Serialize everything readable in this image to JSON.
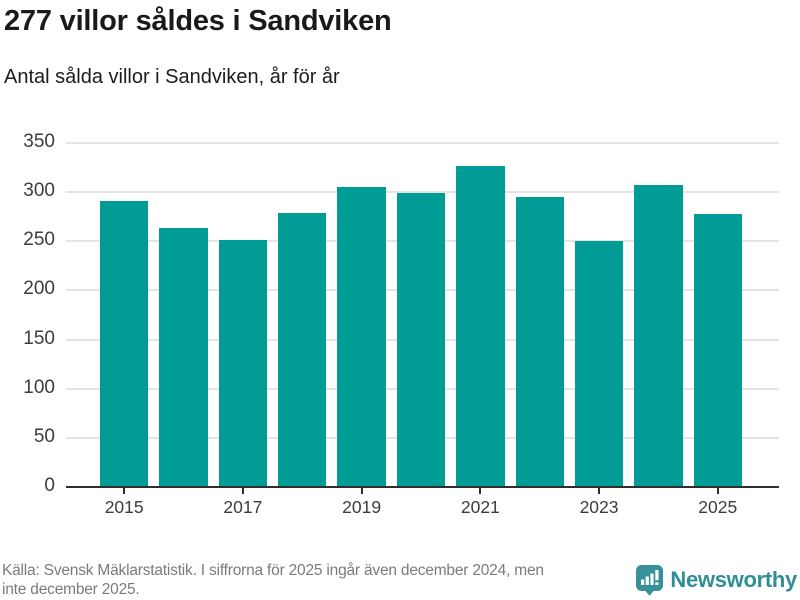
{
  "header": {
    "title": "277 villor såldes i Sandviken",
    "subtitle": "Antal sålda villor i Sandviken, år för år"
  },
  "chart_data": {
    "type": "bar",
    "title": "277 villor såldes i Sandviken",
    "subtitle": "Antal sålda villor i Sandviken, år för år",
    "categories": [
      "2015",
      "2016",
      "2017",
      "2018",
      "2019",
      "2020",
      "2021",
      "2022",
      "2023",
      "2024",
      "2025"
    ],
    "values": [
      290,
      262,
      250,
      278,
      304,
      298,
      326,
      294,
      249,
      306,
      277
    ],
    "xlabel": "",
    "ylabel": "",
    "ylim": [
      0,
      350
    ],
    "y_ticks": [
      0,
      50,
      100,
      150,
      200,
      250,
      300,
      350
    ],
    "x_tick_labels": [
      "2015",
      "2017",
      "2019",
      "2021",
      "2023",
      "2025"
    ],
    "grid": true,
    "legend": false,
    "bar_color": "#009c95",
    "gridline_color": "#e4e4e4",
    "axis_color": "#2e2e2e"
  },
  "footer": {
    "source_lines": [
      "Källa: Svensk Mäklarstatistik. I siffrorna för 2025 ingår även december 2024, men",
      "inte december 2025."
    ],
    "brand": {
      "name": "Newsworthy",
      "logo_color": "#38919a",
      "wordmark_color": "#2f8e96"
    }
  }
}
